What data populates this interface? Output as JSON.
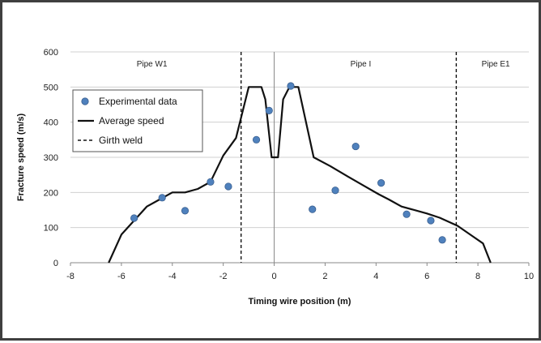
{
  "chart_data": {
    "type": "scatter",
    "xlabel": "Timing wire position (m)",
    "ylabel": "Fracture speed (m/s)",
    "xlim": [
      -8,
      10
    ],
    "ylim": [
      0,
      600
    ],
    "xticks": [
      "-8",
      "-6",
      "-4",
      "-2",
      "0",
      "2",
      "4",
      "6",
      "8",
      "10"
    ],
    "yticks": [
      "0",
      "100",
      "200",
      "300",
      "400",
      "500",
      "600"
    ],
    "grid": "horizontal",
    "legend_position": "top-left",
    "regions": [
      {
        "label": "Pipe  W1",
        "x_center": -4.8
      },
      {
        "label": "Pipe  I",
        "x_center": 3.4
      },
      {
        "label": "Pipe  E1",
        "x_center": 8.7
      }
    ],
    "series": [
      {
        "name": "Experimental data",
        "kind": "points",
        "color": "#4f81bd",
        "x": [
          -5.5,
          -4.4,
          -3.5,
          -2.5,
          -1.8,
          -0.7,
          -0.2,
          0.65,
          1.5,
          2.4,
          3.2,
          4.2,
          5.2,
          6.15,
          6.6
        ],
        "y": [
          127,
          185,
          148,
          230,
          217,
          350,
          433,
          503,
          152,
          206,
          331,
          227,
          138,
          120,
          65
        ]
      },
      {
        "name": "Average speed",
        "kind": "line",
        "color": "#111111",
        "x": [
          -6.5,
          -6.0,
          -5.5,
          -5.0,
          -4.5,
          -4.0,
          -3.5,
          -3.0,
          -2.5,
          -2.0,
          -1.5,
          -1.0,
          -0.5,
          -0.35,
          -0.1,
          0.15,
          0.35,
          0.6,
          0.95,
          1.55,
          2.2,
          2.9,
          3.5,
          4.1,
          4.5,
          5.0,
          6.0,
          6.5,
          7.2,
          7.8,
          8.2,
          8.5
        ],
        "y": [
          0,
          80,
          120,
          160,
          180,
          200,
          200,
          210,
          230,
          305,
          355,
          500,
          500,
          465,
          300,
          300,
          465,
          500,
          500,
          300,
          275,
          245,
          220,
          195,
          180,
          160,
          140,
          128,
          105,
          75,
          55,
          0
        ]
      },
      {
        "name": "Girth weld",
        "kind": "vertical-dashed",
        "color": "#111111",
        "x": [
          -1.3,
          7.15
        ]
      }
    ]
  }
}
